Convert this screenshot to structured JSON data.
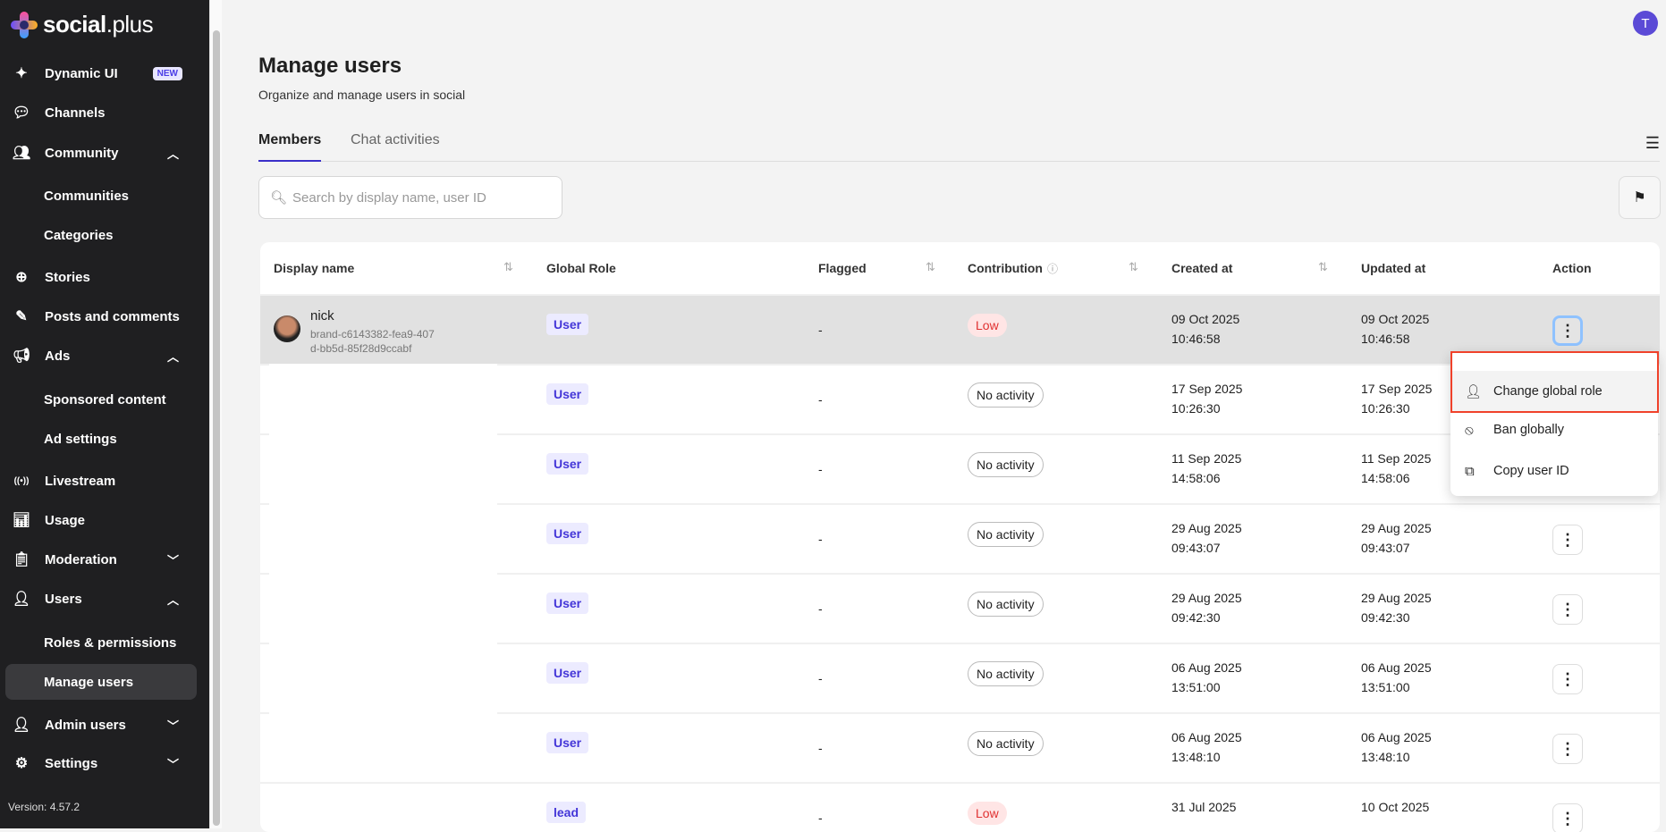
{
  "brand": {
    "name_bold": "social",
    "name_rest": ".plus"
  },
  "sidebar": {
    "items": [
      {
        "label": "Dynamic UI",
        "icon": "sparkle-icon",
        "badge": "NEW"
      },
      {
        "label": "Channels",
        "icon": "chat-icon"
      },
      {
        "label": "Community",
        "icon": "people-icon",
        "expanded": true
      },
      {
        "label": "Communities",
        "sub": true
      },
      {
        "label": "Categories",
        "sub": true
      },
      {
        "label": "Stories",
        "icon": "story-add-icon"
      },
      {
        "label": "Posts and comments",
        "icon": "edit-icon"
      },
      {
        "label": "Ads",
        "icon": "megaphone-icon",
        "expanded": true
      },
      {
        "label": "Sponsored content",
        "sub": true
      },
      {
        "label": "Ad settings",
        "sub": true
      },
      {
        "label": "Livestream",
        "icon": "broadcast-icon"
      },
      {
        "label": "Usage",
        "icon": "bar-chart-icon"
      },
      {
        "label": "Moderation",
        "icon": "clipboard-icon",
        "expanded": false
      },
      {
        "label": "Users",
        "icon": "user-icon",
        "expanded": true
      },
      {
        "label": "Roles & permissions",
        "sub": true
      },
      {
        "label": "Manage users",
        "sub": true,
        "active": true
      },
      {
        "label": "Admin users",
        "icon": "admin-user-icon",
        "expanded": false
      },
      {
        "label": "Settings",
        "icon": "gear-icon",
        "expanded": false
      }
    ],
    "version": "Version: 4.57.2"
  },
  "header": {
    "avatar_initial": "T"
  },
  "page": {
    "title": "Manage users",
    "subtitle": "Organize and manage users in social"
  },
  "tabs": [
    {
      "label": "Members",
      "active": true
    },
    {
      "label": "Chat activities",
      "active": false
    }
  ],
  "search": {
    "placeholder": "Search by display name, user ID",
    "value": ""
  },
  "table": {
    "columns": [
      "Display name",
      "Global Role",
      "Flagged",
      "Contribution",
      "Created at",
      "Updated at",
      "Action"
    ],
    "rows": [
      {
        "name": "nick",
        "id_line1": "brand-c6143382-fea9-407",
        "id_line2": "d-bb5d-85f28d9ccabf",
        "role": "User",
        "flagged": "-",
        "contribution": "Low",
        "created_date": "09 Oct 2025",
        "created_time": "10:46:58",
        "updated_date": "09 Oct 2025",
        "updated_time": "10:46:58"
      },
      {
        "name": "",
        "role": "User",
        "flagged": "-",
        "contribution": "No activity",
        "created_date": "17 Sep 2025",
        "created_time": "10:26:30",
        "updated_date": "17 Sep 2025",
        "updated_time": "10:26:30"
      },
      {
        "name": "",
        "role": "User",
        "flagged": "-",
        "contribution": "No activity",
        "created_date": "11 Sep 2025",
        "created_time": "14:58:06",
        "updated_date": "11 Sep 2025",
        "updated_time": "14:58:06"
      },
      {
        "name": "",
        "role": "User",
        "flagged": "-",
        "contribution": "No activity",
        "created_date": "29 Aug 2025",
        "created_time": "09:43:07",
        "updated_date": "29 Aug 2025",
        "updated_time": "09:43:07"
      },
      {
        "name": "",
        "role": "User",
        "flagged": "-",
        "contribution": "No activity",
        "created_date": "29 Aug 2025",
        "created_time": "09:42:30",
        "updated_date": "29 Aug 2025",
        "updated_time": "09:42:30"
      },
      {
        "name": "",
        "role": "User",
        "flagged": "-",
        "contribution": "No activity",
        "created_date": "06 Aug 2025",
        "created_time": "13:51:00",
        "updated_date": "06 Aug 2025",
        "updated_time": "13:51:00"
      },
      {
        "name": "",
        "role": "User",
        "flagged": "-",
        "contribution": "No activity",
        "created_date": "06 Aug 2025",
        "created_time": "13:48:10",
        "updated_date": "06 Aug 2025",
        "updated_time": "13:48:10"
      },
      {
        "name": "",
        "role": "lead",
        "flagged": "-",
        "contribution": "Low",
        "created_date": "31 Jul 2025",
        "created_time": "",
        "updated_date": "10 Oct 2025",
        "updated_time": ""
      }
    ]
  },
  "action_menu": {
    "items": [
      {
        "label": "Change global role",
        "icon": "user-role-icon"
      },
      {
        "label": "Ban globally",
        "icon": "ban-icon"
      },
      {
        "label": "Copy user ID",
        "icon": "copy-icon"
      }
    ]
  },
  "colors": {
    "accent": "#3b2fc9",
    "highlight_box": "#f0412a",
    "low_badge": "#e03131"
  }
}
